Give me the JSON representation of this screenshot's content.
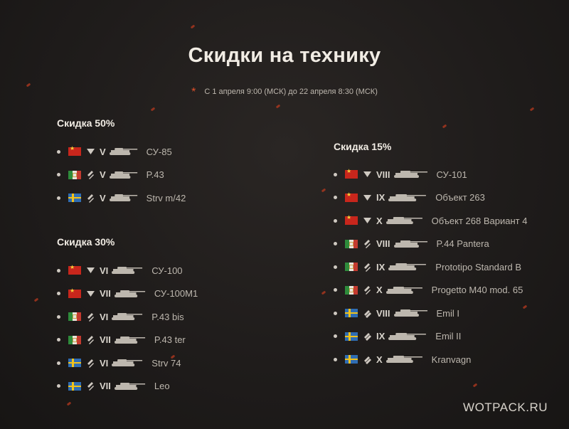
{
  "page": {
    "title": "Скидки на технику",
    "dates": "С 1 апреля 9:00 (МСК) до 22 апреля 8:30 (МСК)",
    "watermark": "WOTPACK.RU"
  },
  "colors": {
    "background": "#1f1c1b",
    "accent": "#e0502a",
    "text": "#bdb7ae",
    "heading": "#f1ece4"
  },
  "sections": [
    {
      "title": "Скидка 50%",
      "items": [
        {
          "nation": "ussr",
          "class": "td",
          "tier": "V",
          "name": "СУ-85"
        },
        {
          "nation": "italy",
          "class": "medium",
          "tier": "V",
          "name": "P.43"
        },
        {
          "nation": "sweden",
          "class": "medium",
          "tier": "V",
          "name": "Strv m/42"
        }
      ]
    },
    {
      "title": "Скидка 30%",
      "items": [
        {
          "nation": "ussr",
          "class": "td",
          "tier": "VI",
          "name": "СУ-100"
        },
        {
          "nation": "ussr",
          "class": "td",
          "tier": "VII",
          "name": "СУ-100М1"
        },
        {
          "nation": "italy",
          "class": "medium",
          "tier": "VI",
          "name": "P.43 bis"
        },
        {
          "nation": "italy",
          "class": "medium",
          "tier": "VII",
          "name": "P.43 ter"
        },
        {
          "nation": "sweden",
          "class": "medium",
          "tier": "VI",
          "name": "Strv 74"
        },
        {
          "nation": "sweden",
          "class": "medium",
          "tier": "VII",
          "name": "Leo"
        }
      ]
    },
    {
      "title": "Скидка 15%",
      "items": [
        {
          "nation": "ussr",
          "class": "td",
          "tier": "VIII",
          "name": "СУ-101"
        },
        {
          "nation": "ussr",
          "class": "td",
          "tier": "IX",
          "name": "Объект 263"
        },
        {
          "nation": "ussr",
          "class": "td",
          "tier": "X",
          "name": "Объект 268 Вариант 4"
        },
        {
          "nation": "italy",
          "class": "medium",
          "tier": "VIII",
          "name": "P.44 Pantera"
        },
        {
          "nation": "italy",
          "class": "medium",
          "tier": "IX",
          "name": "Prototipo Standard B"
        },
        {
          "nation": "italy",
          "class": "medium",
          "tier": "X",
          "name": "Progetto M40 mod. 65"
        },
        {
          "nation": "sweden",
          "class": "heavy",
          "tier": "VIII",
          "name": "Emil I"
        },
        {
          "nation": "sweden",
          "class": "heavy",
          "tier": "IX",
          "name": "Emil II"
        },
        {
          "nation": "sweden",
          "class": "heavy",
          "tier": "X",
          "name": "Kranvagn"
        }
      ]
    }
  ]
}
